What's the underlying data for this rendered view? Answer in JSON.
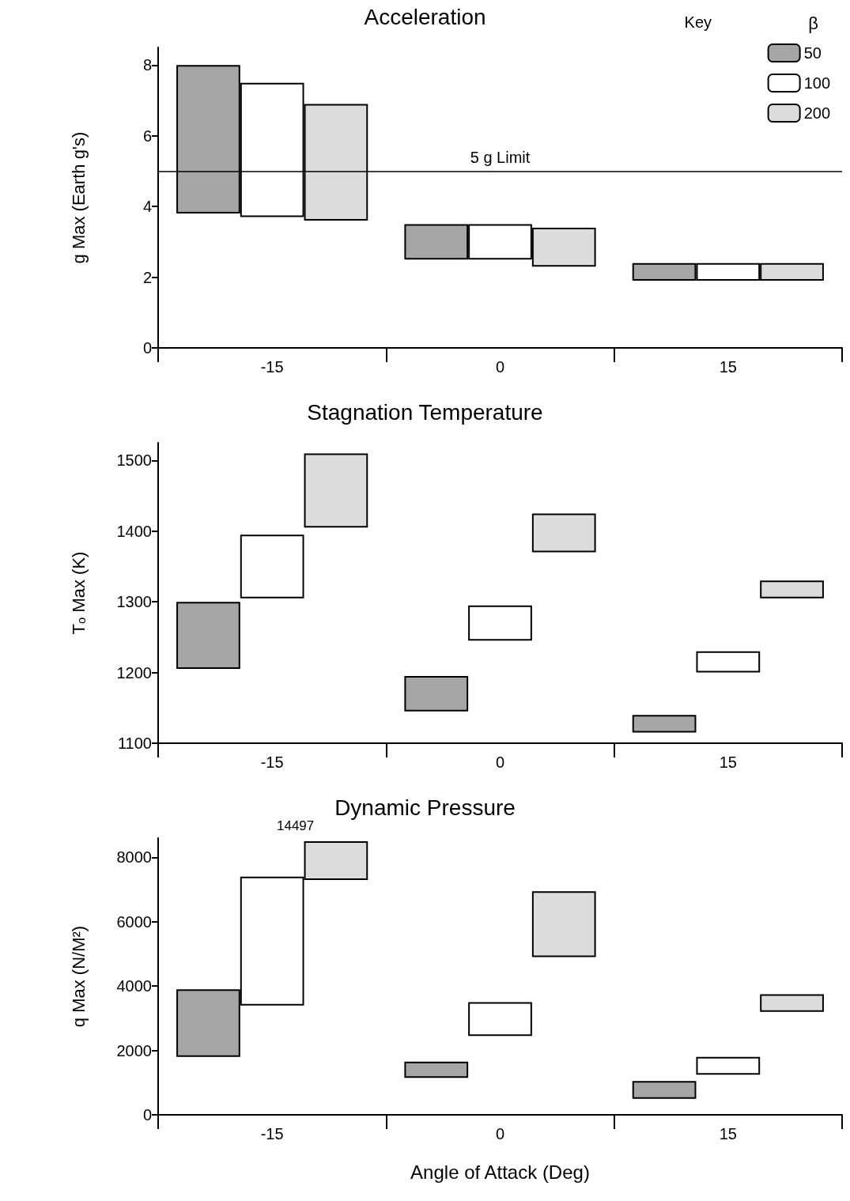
{
  "chart_data": [
    {
      "type": "bar",
      "title": "Acceleration",
      "ylabel": "g Max (Earth g's)",
      "categories": [
        "-15",
        "0",
        "15"
      ],
      "ylim": [
        0,
        8.5
      ],
      "yticks": [
        0,
        2,
        4,
        6,
        8
      ],
      "grid": false,
      "legend": "top right",
      "legend_title": "β",
      "annotations": [
        "Key"
      ],
      "ref_lines": [
        {
          "axis": "y",
          "value": 5,
          "label": "5 g Limit",
          "color": "#000000"
        }
      ],
      "series": [
        {
          "name": "50",
          "color": "#a6a6a6",
          "base": [
            3.8,
            2.5,
            1.9
          ],
          "values": [
            4.2,
            1.0,
            0.5
          ]
        },
        {
          "name": "100",
          "color": "#ffffff",
          "base": [
            3.7,
            2.5,
            1.9
          ],
          "values": [
            3.8,
            1.0,
            0.5
          ]
        },
        {
          "name": "200",
          "color": "#dcdcdc",
          "base": [
            3.6,
            2.3,
            1.9
          ],
          "values": [
            3.3,
            1.1,
            0.5
          ]
        }
      ]
    },
    {
      "type": "bar",
      "title": "Stagnation Temperature",
      "ylabel": "Tₒ Max (K)",
      "categories": [
        "-15",
        "0",
        "15"
      ],
      "ylim": [
        1100,
        1525
      ],
      "yticks": [
        1100,
        1200,
        1300,
        1400,
        1500
      ],
      "grid": false,
      "legend": false,
      "series": [
        {
          "color": "#a6a6a6",
          "base": [
            1205,
            1145,
            1115
          ],
          "values": [
            95,
            50,
            25
          ]
        },
        {
          "color": "#ffffff",
          "base": [
            1305,
            1245,
            1200
          ],
          "values": [
            90,
            50,
            30
          ]
        },
        {
          "color": "#dcdcdc",
          "base": [
            1405,
            1370,
            1305
          ],
          "values": [
            105,
            55,
            25
          ]
        }
      ]
    },
    {
      "type": "bar",
      "title": "Dynamic Pressure",
      "ylabel": "q Max (N/M²)",
      "xlabel": "Angle of Attack (Deg)",
      "categories": [
        "-15",
        "0",
        "15"
      ],
      "ylim": [
        0,
        8600
      ],
      "yticks": [
        0,
        2000,
        4000,
        6000,
        8000
      ],
      "grid": false,
      "legend": false,
      "annotations": [
        "14497"
      ],
      "series": [
        {
          "color": "#a6a6a6",
          "base": [
            1800,
            1150,
            500
          ],
          "values": [
            2100,
            500,
            550
          ]
        },
        {
          "color": "#ffffff",
          "base": [
            3400,
            2450,
            1250
          ],
          "values": [
            4000,
            1050,
            550
          ]
        },
        {
          "color": "#dcdcdc",
          "base": [
            7300,
            4900,
            3200
          ],
          "values": [
            1200,
            2050,
            550
          ]
        }
      ]
    }
  ]
}
